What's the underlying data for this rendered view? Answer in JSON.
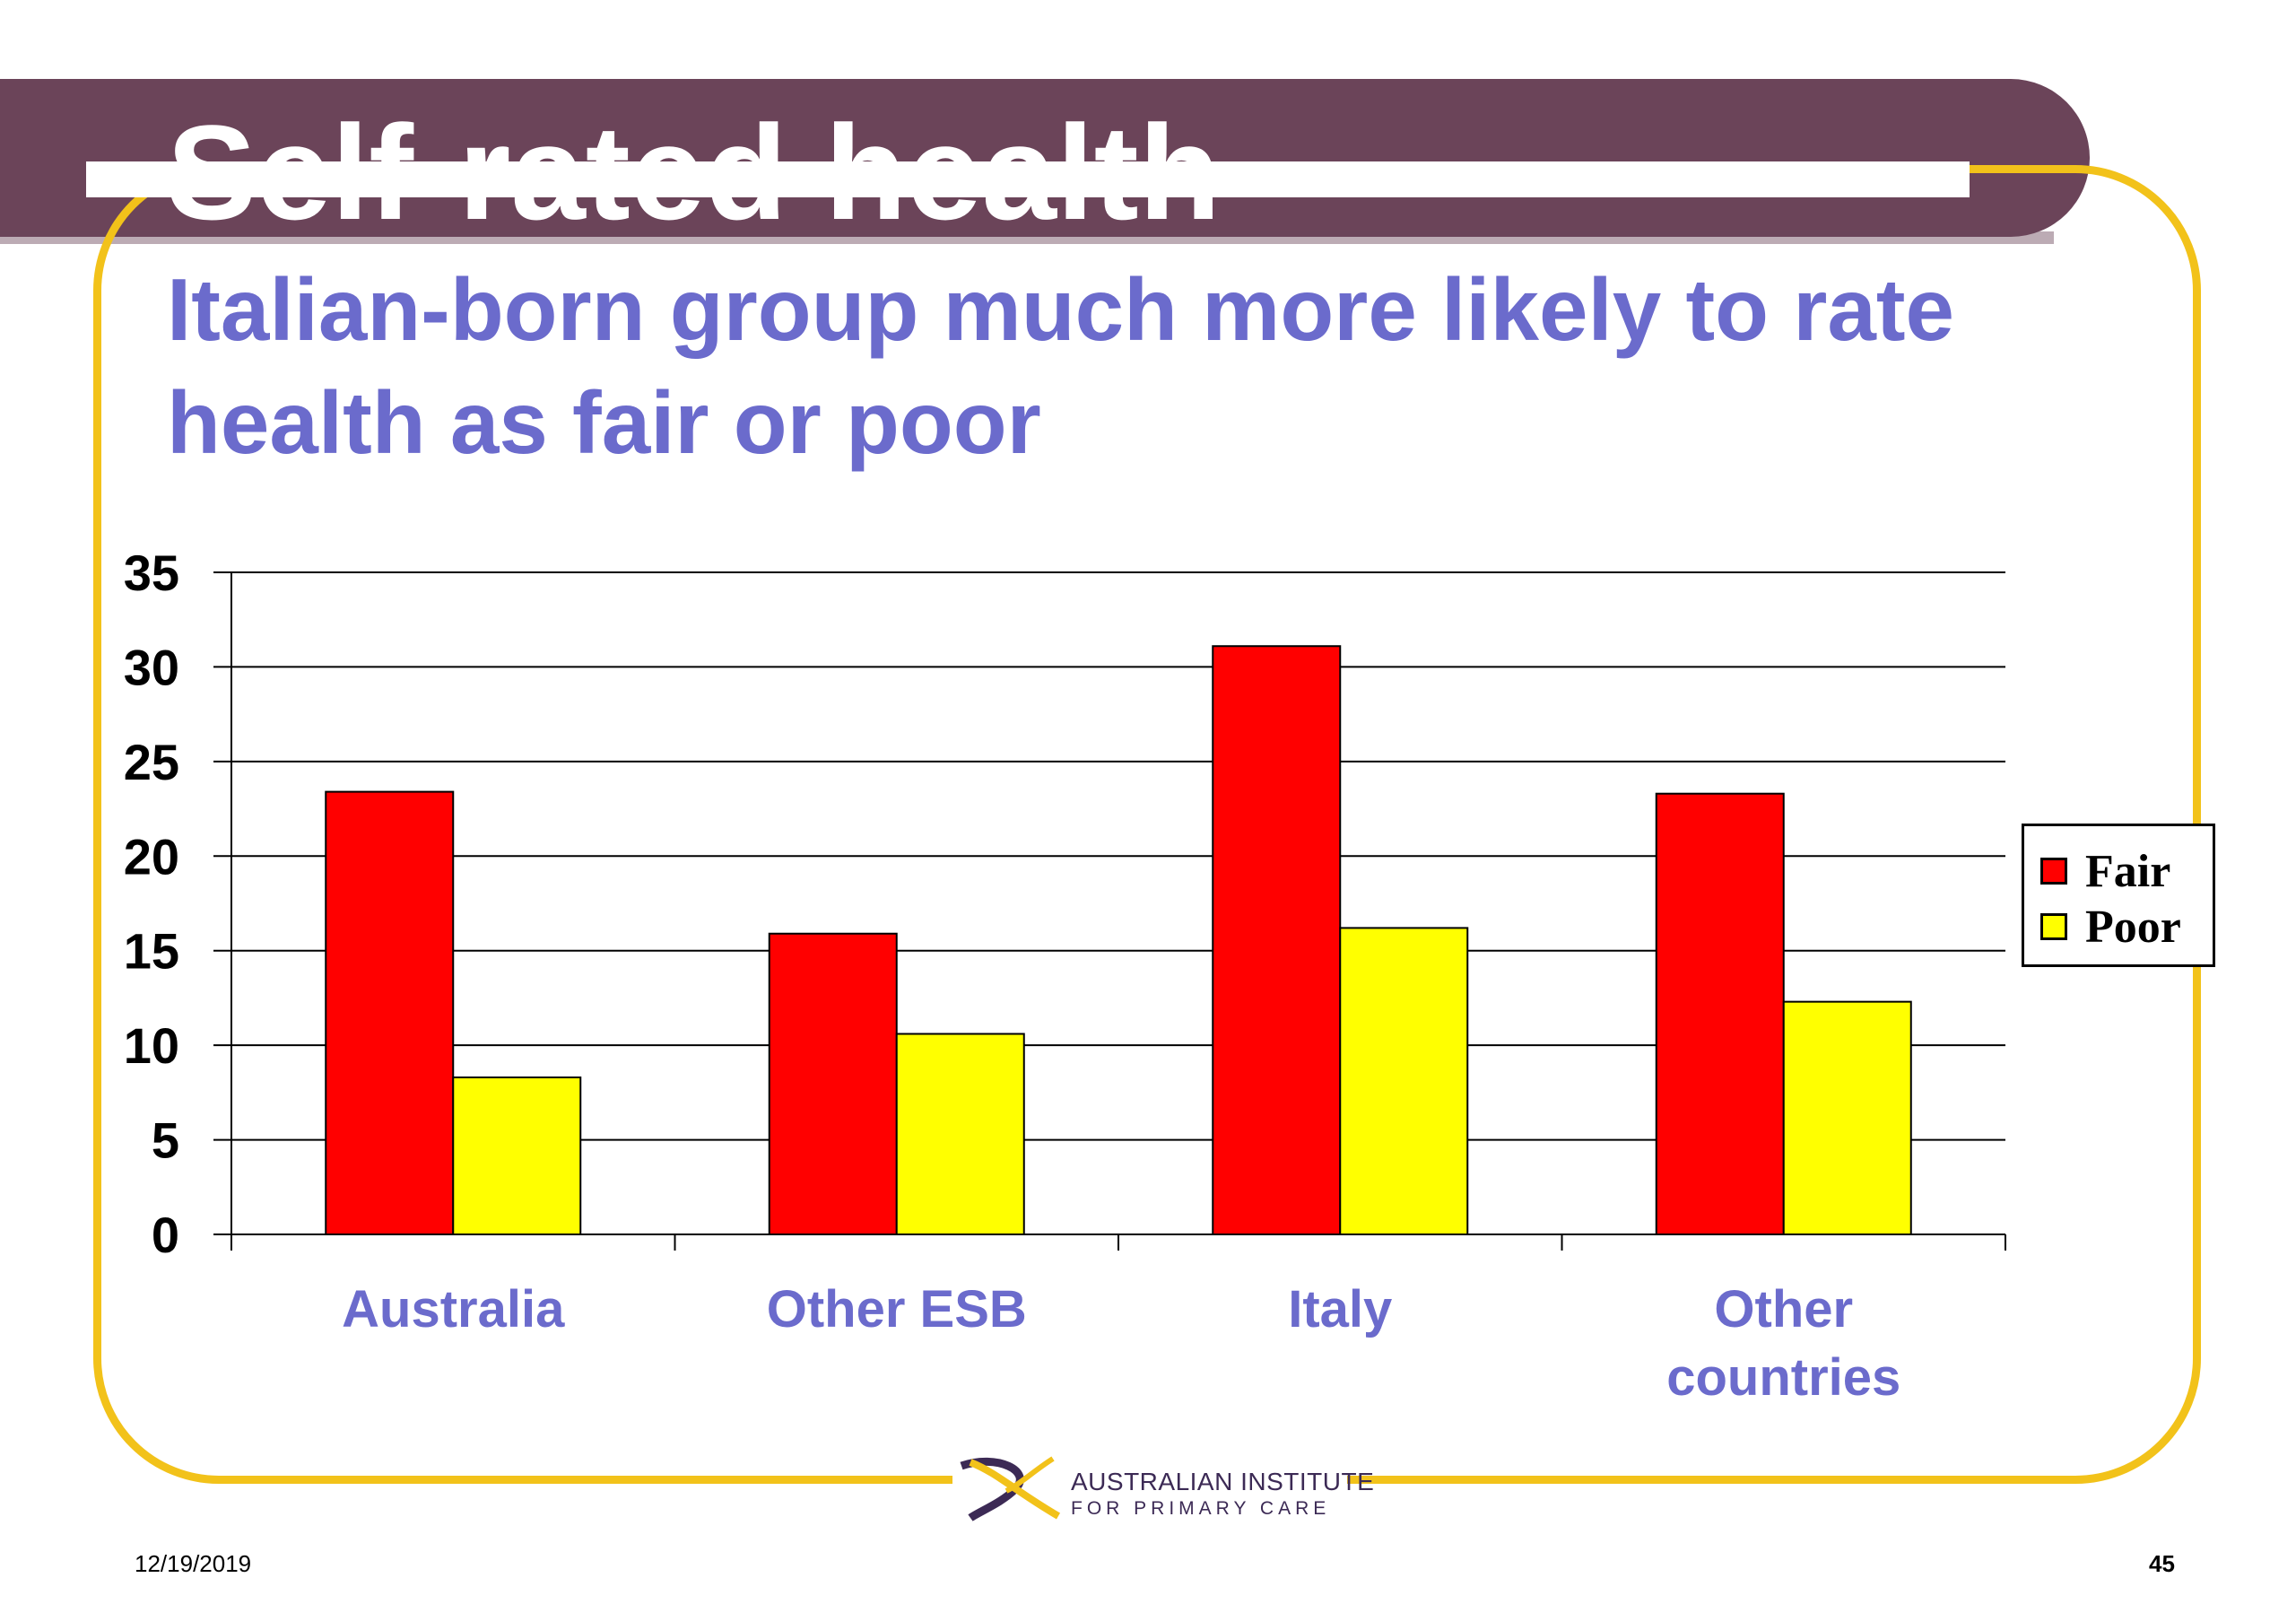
{
  "slide": {
    "title": "Self-rated health",
    "subtitle": "Italian-born group much more likely to rate health as fair or poor",
    "footer_date": "12/19/2019",
    "page_number": "45",
    "logo": {
      "line1": "AUSTRALIAN INSTITUTE",
      "line2": "FOR PRIMARY CARE"
    }
  },
  "colors": {
    "title_band": "#6b4459",
    "subtitle_text": "#6b6bcc",
    "frame": "#f2c21a",
    "fair": "#ff0000",
    "poor": "#ffff00"
  },
  "chart_data": {
    "type": "bar",
    "categories": [
      "Australia",
      "Other ESB",
      "Italy",
      "Other countries"
    ],
    "series": [
      {
        "name": "Fair",
        "values": [
          23.4,
          15.9,
          31.1,
          23.3
        ],
        "color": "#ff0000"
      },
      {
        "name": "Poor",
        "values": [
          8.3,
          10.6,
          16.2,
          12.3
        ],
        "color": "#ffff00"
      }
    ],
    "ylim": [
      0,
      35
    ],
    "yticks": [
      "0",
      "5",
      "10",
      "15",
      "20",
      "25",
      "30",
      "35"
    ],
    "grid": true,
    "legend": "right"
  }
}
